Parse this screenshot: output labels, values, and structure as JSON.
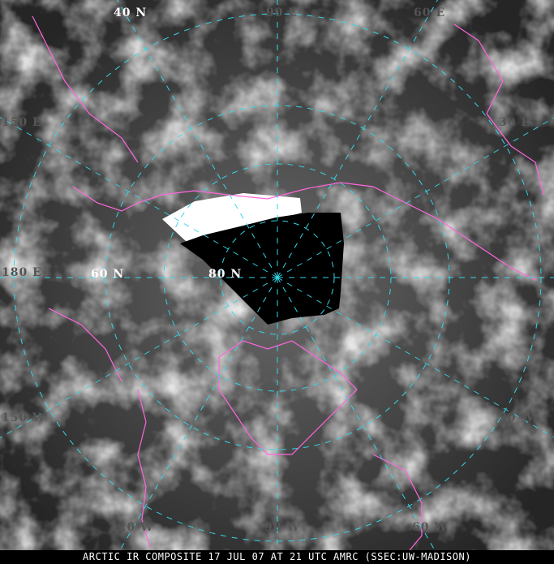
{
  "caption": "ARCTIC IR COMPOSITE 17 JUL 07 AT 21 UTC AMRC (SSEC:UW-MADISON)",
  "colors": {
    "graticule": "#33d6e6",
    "coastline": "#ff66dd",
    "no_data": "#000000"
  },
  "labels": {
    "lat40": "40 N",
    "lat60": "60 N",
    "lat80": "80 N",
    "lon90e": "90 E",
    "lon60e": "60 E",
    "lon30e": "30 E",
    "lon150e": "150 E",
    "lon180e": "180 E",
    "lon150w": "150 W",
    "lon30w": "30 W",
    "lon120w": "120 W",
    "lon90w": "90 W",
    "lon60w": "60 W"
  }
}
